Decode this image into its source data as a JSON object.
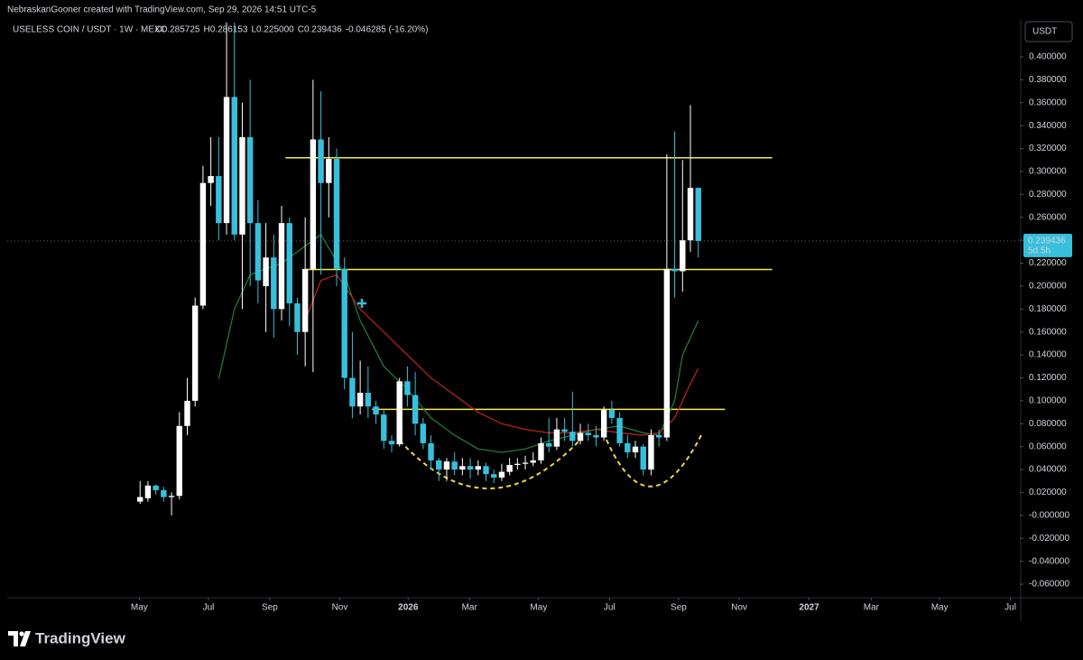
{
  "header": {
    "credit": "NebraskanGooner created with TradingView.com, Sep 29, 2026 14:51 UTC-5"
  },
  "chart_data": {
    "type": "candlestick",
    "symbol": "USELESS COIN / USDT · 1W · MEXC",
    "readout": [
      {
        "label": "O",
        "value": "0.285725"
      },
      {
        "label": "H",
        "value": "0.286153"
      },
      {
        "label": "L",
        "value": "0.225000"
      },
      {
        "label": "C",
        "value": "0.239436"
      }
    ],
    "change": "-0.046285 (-16.20%)",
    "currency": "USDT",
    "x": [
      0,
      1,
      2,
      3,
      4,
      5,
      6,
      7,
      8,
      9,
      10,
      11,
      12,
      13,
      14,
      15,
      16,
      17,
      18,
      19,
      20,
      21,
      22,
      23,
      24,
      25,
      26,
      27,
      28,
      29,
      30,
      31,
      32,
      33,
      34,
      35,
      36,
      37,
      38,
      39,
      40,
      41,
      42,
      43,
      44,
      45,
      46,
      47,
      48,
      49,
      50,
      51,
      52,
      53,
      54,
      55,
      56,
      57,
      58,
      59,
      60,
      61,
      62,
      63,
      64,
      65,
      66,
      67,
      68,
      69,
      70,
      71
    ],
    "open": [
      0.012,
      0.015,
      0.026,
      0.022,
      0.016,
      0.017,
      0.078,
      0.1,
      0.183,
      0.29,
      0.296,
      0.255,
      0.365,
      0.245,
      0.33,
      0.255,
      0.2,
      0.225,
      0.18,
      0.255,
      0.185,
      0.16,
      0.215,
      0.328,
      0.29,
      0.311,
      0.215,
      0.12,
      0.095,
      0.107,
      0.095,
      0.088,
      0.065,
      0.062,
      0.117,
      0.105,
      0.08,
      0.063,
      0.048,
      0.04,
      0.047,
      0.04,
      0.043,
      0.04,
      0.043,
      0.036,
      0.033,
      0.038,
      0.044,
      0.045,
      0.046,
      0.048,
      0.063,
      0.06,
      0.075,
      0.073,
      0.065,
      0.072,
      0.07,
      0.068,
      0.092,
      0.085,
      0.063,
      0.055,
      0.06,
      0.04,
      0.07,
      0.068,
      0.215,
      0.213,
      0.24,
      0.285725
    ],
    "high": [
      0.03,
      0.03,
      0.027,
      0.025,
      0.02,
      0.09,
      0.12,
      0.19,
      0.305,
      0.33,
      0.33,
      0.43,
      0.43,
      0.36,
      0.38,
      0.275,
      0.255,
      0.245,
      0.27,
      0.26,
      0.19,
      0.26,
      0.38,
      0.37,
      0.33,
      0.32,
      0.225,
      0.16,
      0.135,
      0.13,
      0.1,
      0.092,
      0.07,
      0.12,
      0.13,
      0.125,
      0.085,
      0.07,
      0.05,
      0.05,
      0.055,
      0.05,
      0.05,
      0.048,
      0.046,
      0.04,
      0.045,
      0.05,
      0.05,
      0.052,
      0.055,
      0.068,
      0.085,
      0.085,
      0.085,
      0.108,
      0.08,
      0.08,
      0.078,
      0.095,
      0.1,
      0.09,
      0.07,
      0.065,
      0.062,
      0.075,
      0.075,
      0.315,
      0.335,
      0.31,
      0.358,
      0.286153
    ],
    "low": [
      0.01,
      0.012,
      0.018,
      0.012,
      0,
      0.014,
      0.07,
      0.095,
      0.18,
      0.27,
      0.24,
      0.245,
      0.24,
      0.18,
      0.2,
      0.185,
      0.16,
      0.155,
      0.17,
      0.165,
      0.14,
      0.13,
      0.125,
      0.21,
      0.26,
      0.2,
      0.11,
      0.085,
      0.088,
      0.085,
      0.08,
      0.058,
      0.055,
      0.06,
      0.095,
      0.07,
      0.058,
      0.04,
      0.03,
      0.03,
      0.035,
      0.035,
      0.032,
      0.035,
      0.03,
      0.028,
      0.03,
      0.035,
      0.04,
      0.04,
      0.043,
      0.045,
      0.055,
      0.057,
      0.065,
      0.06,
      0.062,
      0.065,
      0.06,
      0.065,
      0.08,
      0.06,
      0.05,
      0.05,
      0.035,
      0.035,
      0.06,
      0.065,
      0.19,
      0.195,
      0.23,
      0.225
    ],
    "close": [
      0.016,
      0.026,
      0.022,
      0.016,
      0.017,
      0.078,
      0.1,
      0.183,
      0.29,
      0.296,
      0.255,
      0.365,
      0.245,
      0.33,
      0.255,
      0.205,
      0.225,
      0.18,
      0.255,
      0.185,
      0.16,
      0.215,
      0.328,
      0.29,
      0.311,
      0.215,
      0.12,
      0.095,
      0.107,
      0.095,
      0.088,
      0.065,
      0.062,
      0.117,
      0.105,
      0.08,
      0.063,
      0.048,
      0.04,
      0.047,
      0.04,
      0.043,
      0.04,
      0.043,
      0.036,
      0.033,
      0.038,
      0.044,
      0.045,
      0.046,
      0.048,
      0.063,
      0.06,
      0.075,
      0.073,
      0.065,
      0.072,
      0.07,
      0.068,
      0.092,
      0.085,
      0.063,
      0.055,
      0.06,
      0.04,
      0.07,
      0.068,
      0.215,
      0.213,
      0.24,
      0.2857,
      0.239436
    ],
    "up_color": "#ffffff",
    "down_color": "#37c0dc",
    "lines": [
      {
        "color": "#1f7a36",
        "x": [
          10,
          12,
          14,
          18,
          23,
          26,
          28,
          31,
          34,
          37,
          40,
          43,
          46,
          49,
          52,
          55,
          58,
          61,
          64,
          66,
          68,
          69,
          71
        ],
        "values": [
          0.119,
          0.18,
          0.21,
          0.22,
          0.245,
          0.21,
          0.17,
          0.13,
          0.11,
          0.085,
          0.07,
          0.058,
          0.055,
          0.058,
          0.065,
          0.07,
          0.075,
          0.078,
          0.072,
          0.07,
          0.1,
          0.14,
          0.17
        ]
      },
      {
        "color": "#b3221f",
        "x": [
          21,
          23,
          25,
          28,
          31,
          34,
          37,
          40,
          43,
          46,
          49,
          52,
          55,
          58,
          61,
          64,
          66,
          68,
          70,
          71
        ],
        "values": [
          0.17,
          0.205,
          0.21,
          0.18,
          0.16,
          0.14,
          0.12,
          0.105,
          0.09,
          0.08,
          0.075,
          0.072,
          0.072,
          0.075,
          0.072,
          0.07,
          0.072,
          0.085,
          0.115,
          0.128
        ]
      }
    ],
    "levels": [
      {
        "value": 0.312,
        "x": [
          18.5,
          80.4
        ]
      },
      {
        "value": 0.2145,
        "x": [
          21,
          80.4
        ]
      },
      {
        "value": 0.0925,
        "x": [
          29.5,
          74.4
        ]
      }
    ],
    "level_color": "#f5e94a",
    "last_price": 0.239436,
    "countdown": "5d 5h",
    "xlim": [
      -16.9,
      111.9
    ],
    "xticks": [
      {
        "value": -0.1,
        "label": "May"
      },
      {
        "value": 8.7,
        "label": "Jul"
      },
      {
        "value": 16.5,
        "label": "Sep"
      },
      {
        "value": 25.4,
        "label": "Nov"
      },
      {
        "value": 34.1,
        "label": "2026"
      },
      {
        "value": 41.9,
        "label": "Mar"
      },
      {
        "value": 50.7,
        "label": "May"
      },
      {
        "value": 59.7,
        "label": "Jul"
      },
      {
        "value": 68.5,
        "label": "Sep"
      },
      {
        "value": 76.2,
        "label": "Nov"
      },
      {
        "value": 85.1,
        "label": "2027"
      },
      {
        "value": 93.0,
        "label": "Mar"
      },
      {
        "value": 101.7,
        "label": "May"
      },
      {
        "value": 110.7,
        "label": "Jul"
      }
    ],
    "ylim": [
      -0.0718,
      0.4323
    ],
    "yticks": [
      {
        "value": 0.4,
        "label": "0.400000"
      },
      {
        "value": 0.38,
        "label": "0.380000"
      },
      {
        "value": 0.36,
        "label": "0.360000"
      },
      {
        "value": 0.34,
        "label": "0.340000"
      },
      {
        "value": 0.32,
        "label": "0.320000"
      },
      {
        "value": 0.3,
        "label": "0.300000"
      },
      {
        "value": 0.28,
        "label": "0.280000"
      },
      {
        "value": 0.26,
        "label": "0.260000"
      },
      {
        "value": 0.24,
        "label": "0.240000"
      },
      {
        "value": 0.22,
        "label": "0.220000"
      },
      {
        "value": 0.2,
        "label": "0.200000"
      },
      {
        "value": 0.18,
        "label": "0.180000"
      },
      {
        "value": 0.16,
        "label": "0.160000"
      },
      {
        "value": 0.14,
        "label": "0.140000"
      },
      {
        "value": 0.12,
        "label": "0.120000"
      },
      {
        "value": 0.1,
        "label": "0.100000"
      },
      {
        "value": 0.08,
        "label": "0.080000"
      },
      {
        "value": 0.06,
        "label": "0.060000"
      },
      {
        "value": 0.04,
        "label": "0.040000"
      },
      {
        "value": 0.02,
        "label": "0.020000"
      },
      {
        "value": 0,
        "label": "-0.000000"
      },
      {
        "value": -0.02,
        "label": "-0.020000"
      },
      {
        "value": -0.04,
        "label": "-0.040000"
      },
      {
        "value": -0.06,
        "label": "-0.060000"
      }
    ]
  },
  "footer": {
    "brand": "TradingView"
  }
}
